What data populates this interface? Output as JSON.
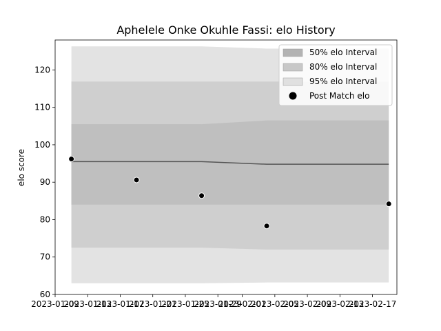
{
  "chart_data": {
    "type": "area",
    "title": "Aphelele Onke Okuhle Fassi: elo History",
    "xlabel": "",
    "ylabel": "elo score",
    "ylim": [
      60,
      128
    ],
    "yticks": [
      60,
      70,
      80,
      90,
      100,
      110,
      120
    ],
    "xlim": [
      "2023-01-09",
      "2023-02-20"
    ],
    "xticks": [
      "2023-01-09",
      "2023-01-13",
      "2023-01-17",
      "2023-01-21",
      "2023-01-25",
      "2023-01-29",
      "2023-02-01",
      "2023-02-05",
      "2023-02-09",
      "2023-02-13",
      "2023-02-17"
    ],
    "grid": false,
    "legend_position": "top-right",
    "x": [
      "2023-01-11",
      "2023-01-19",
      "2023-01-27",
      "2023-02-04",
      "2023-02-19"
    ],
    "bands": [
      {
        "name": "95% elo Interval",
        "color": "#e3e3e3",
        "lower": [
          63.0,
          63.0,
          63.0,
          63.2,
          63.2
        ],
        "upper": [
          126.3,
          126.3,
          126.3,
          125.7,
          125.7
        ]
      },
      {
        "name": "80% elo Interval",
        "color": "#cfcfcf",
        "lower": [
          72.5,
          72.5,
          72.5,
          72.0,
          72.0
        ],
        "upper": [
          116.9,
          116.9,
          116.9,
          116.9,
          116.9
        ]
      },
      {
        "name": "50% elo Interval",
        "color": "#bfbfbf",
        "lower": [
          84.0,
          84.0,
          84.0,
          84.0,
          84.0
        ],
        "upper": [
          105.5,
          105.5,
          105.5,
          106.5,
          106.5
        ]
      }
    ],
    "mean_line": {
      "color": "#555555",
      "values": [
        95.5,
        95.5,
        95.5,
        94.8,
        94.8
      ]
    },
    "series": [
      {
        "name": "Post Match elo",
        "color": "#000000",
        "x": [
          "2023-01-11",
          "2023-01-19",
          "2023-01-27",
          "2023-02-04",
          "2023-02-19"
        ],
        "values": [
          96.2,
          90.6,
          86.4,
          78.3,
          84.2
        ]
      }
    ],
    "legend": [
      {
        "label": "50% elo Interval",
        "kind": "patch",
        "color": "#b3b3b3"
      },
      {
        "label": "80% elo Interval",
        "kind": "patch",
        "color": "#c8c8c8"
      },
      {
        "label": "95% elo Interval",
        "kind": "patch",
        "color": "#e0e0e0"
      },
      {
        "label": "Post Match elo",
        "kind": "marker",
        "color": "#000000"
      }
    ]
  }
}
